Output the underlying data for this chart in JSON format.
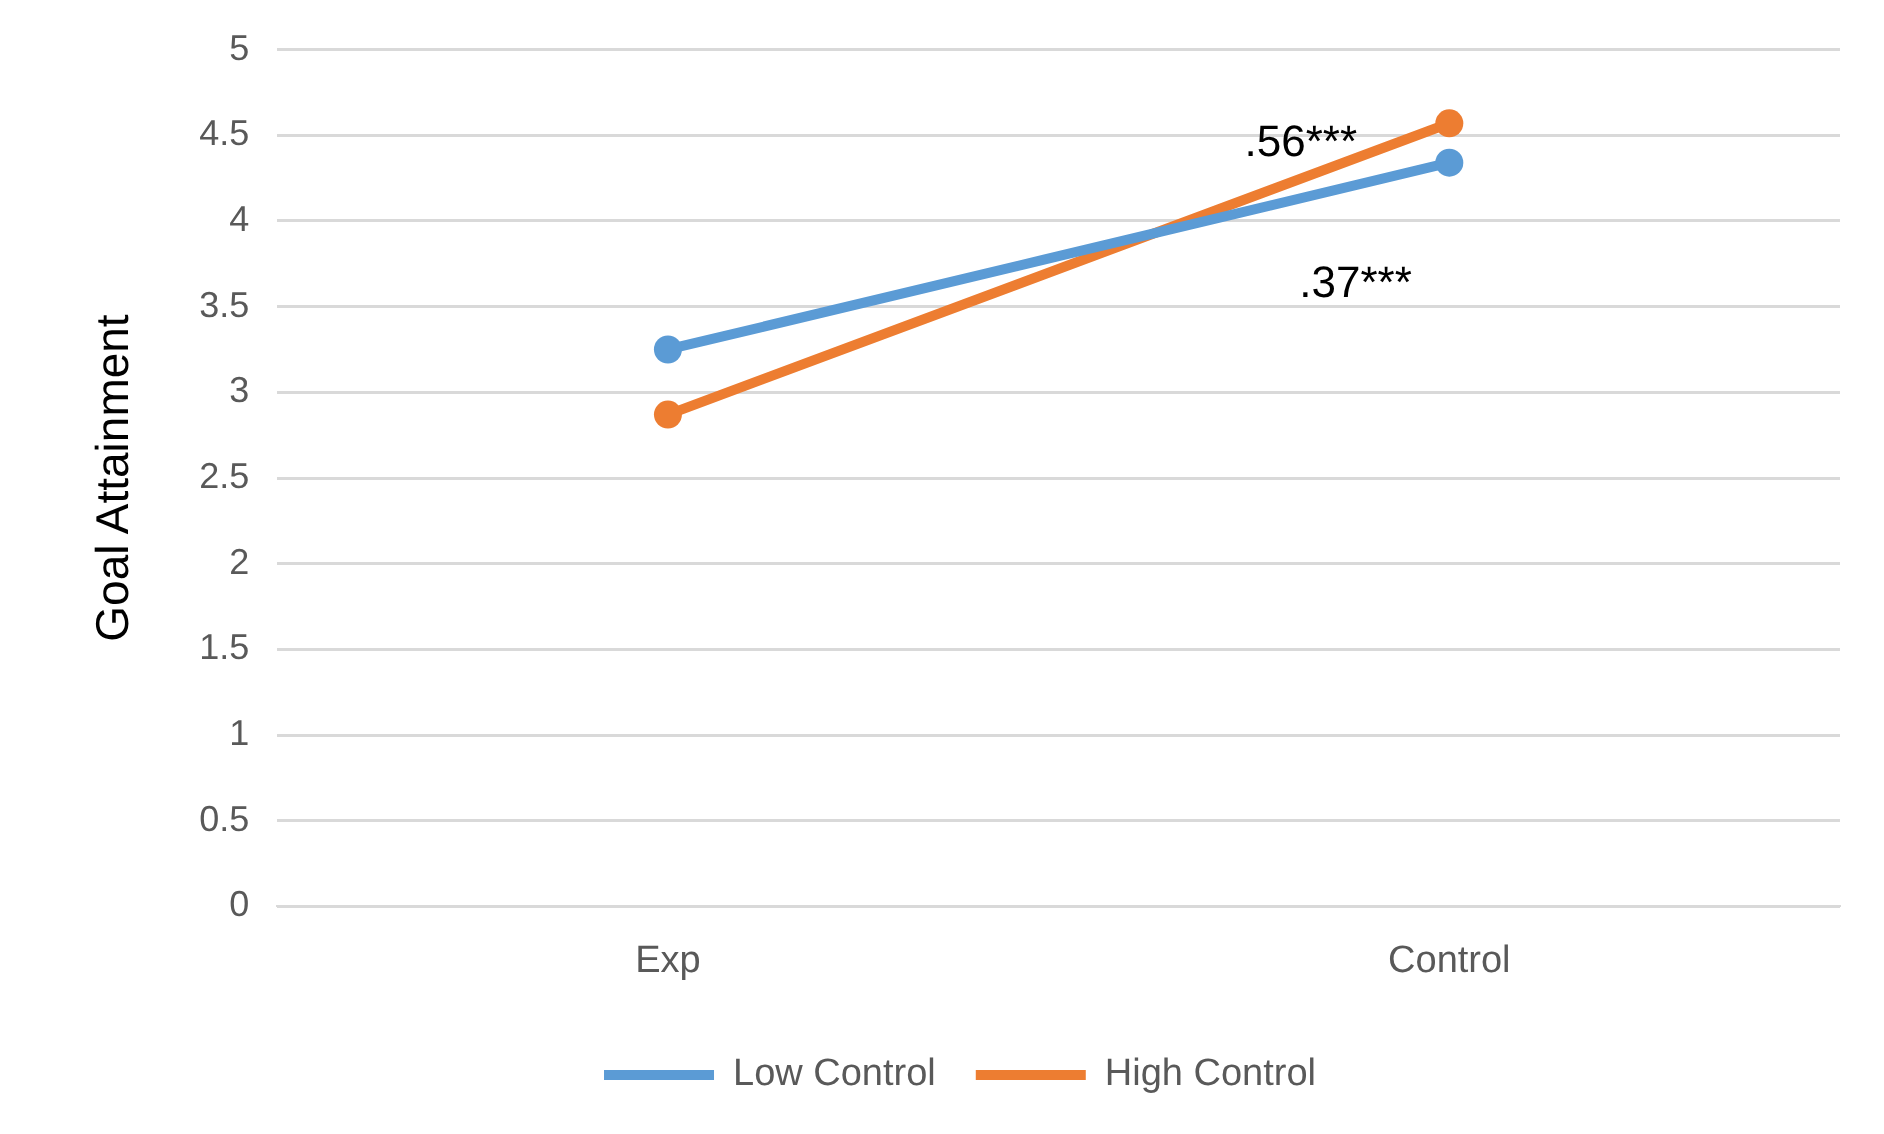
{
  "chart_data": {
    "type": "line",
    "ylabel": "Goal Attainment",
    "categories": [
      "Exp",
      "Control"
    ],
    "series": [
      {
        "name": "Low Control",
        "color": "#5b9bd5",
        "values": [
          3.25,
          4.34
        ]
      },
      {
        "name": "High Control",
        "color": "#ed7d31",
        "values": [
          2.87,
          4.57
        ]
      }
    ],
    "ylim": [
      0,
      5
    ],
    "yticks": [
      0,
      0.5,
      1,
      1.5,
      2,
      2.5,
      3,
      3.5,
      4,
      4.5,
      5
    ],
    "grid": "y",
    "legend": "bottom",
    "marker": "circle",
    "line_style": "solid",
    "annotations": [
      ".56***",
      ".37***"
    ]
  }
}
